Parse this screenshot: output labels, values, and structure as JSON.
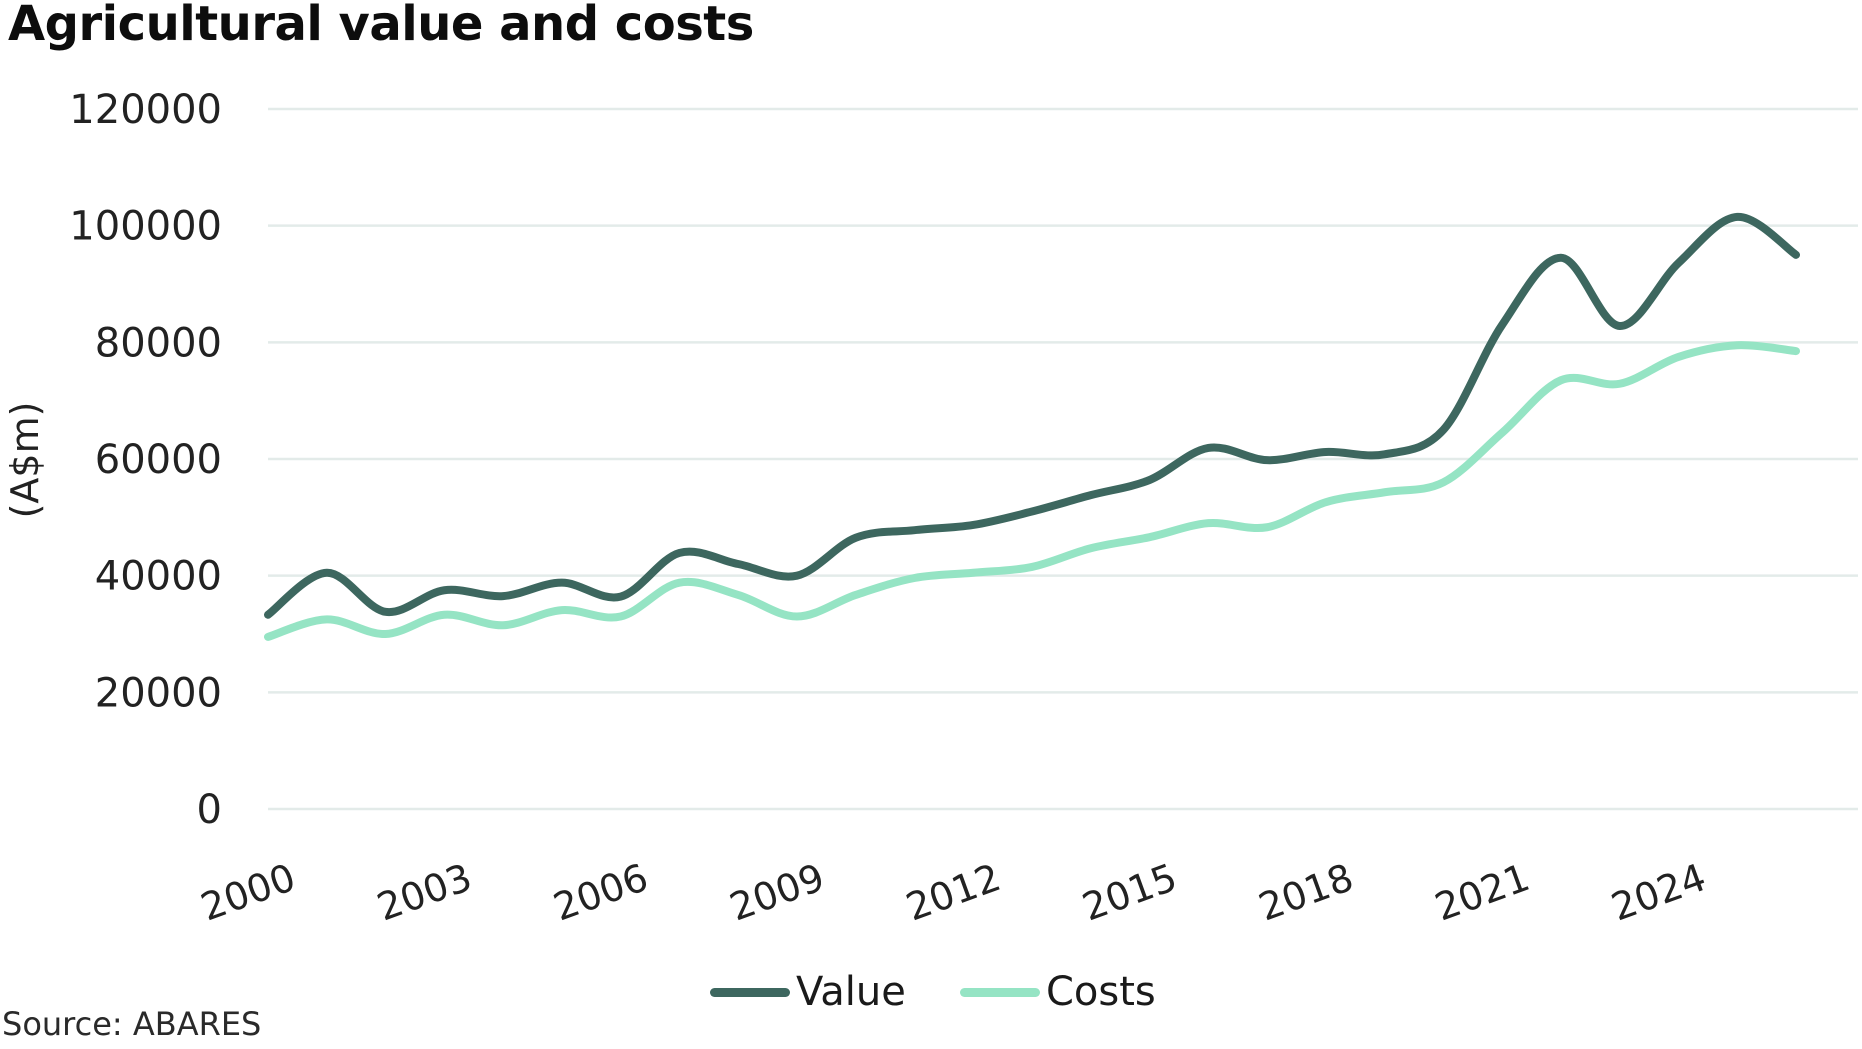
{
  "title": "Agricultural value and costs",
  "source": "Source: ABARES",
  "colors": {
    "value": "#3d675f",
    "costs": "#95e4c4",
    "grid": "#e3ebe9"
  },
  "legend": [
    {
      "label": "Value",
      "color": "#3d675f"
    },
    {
      "label": "Costs",
      "color": "#95e4c4"
    }
  ],
  "chart_data": {
    "type": "line",
    "title": "Agricultural value and costs",
    "xlabel": "",
    "ylabel": "(A$m)",
    "ylim": [
      0,
      120000
    ],
    "yticks": [
      0,
      20000,
      40000,
      60000,
      80000,
      100000,
      120000
    ],
    "ytick_labels": [
      "0",
      "20000",
      "40000",
      "60000",
      "80000",
      "100000",
      "120000"
    ],
    "xtick_labels": [
      "2000",
      "2003",
      "2006",
      "2009",
      "2012",
      "2015",
      "2018",
      "2021",
      "2024"
    ],
    "x": [
      2000,
      2001,
      2002,
      2003,
      2004,
      2005,
      2006,
      2007,
      2008,
      2009,
      2010,
      2011,
      2012,
      2013,
      2014,
      2015,
      2016,
      2017,
      2018,
      2019,
      2020,
      2021,
      2022,
      2023,
      2024,
      2025,
      2026
    ],
    "grid": true,
    "smooth": true,
    "legend_position": "bottom",
    "series": [
      {
        "name": "Value",
        "values": [
          33300,
          40500,
          33800,
          37500,
          36500,
          38800,
          36400,
          43900,
          42000,
          40000,
          46500,
          47800,
          48700,
          51000,
          53800,
          56400,
          61900,
          59800,
          61200,
          60800,
          65000,
          83000,
          94500,
          82800,
          93600,
          101500,
          95000
        ]
      },
      {
        "name": "Costs",
        "values": [
          29500,
          32500,
          30000,
          33300,
          31500,
          34100,
          33000,
          38800,
          36700,
          33000,
          36700,
          39600,
          40500,
          41500,
          44700,
          46600,
          49000,
          48300,
          52600,
          54300,
          56000,
          64500,
          73500,
          72900,
          77500,
          79500,
          78500
        ]
      }
    ]
  }
}
